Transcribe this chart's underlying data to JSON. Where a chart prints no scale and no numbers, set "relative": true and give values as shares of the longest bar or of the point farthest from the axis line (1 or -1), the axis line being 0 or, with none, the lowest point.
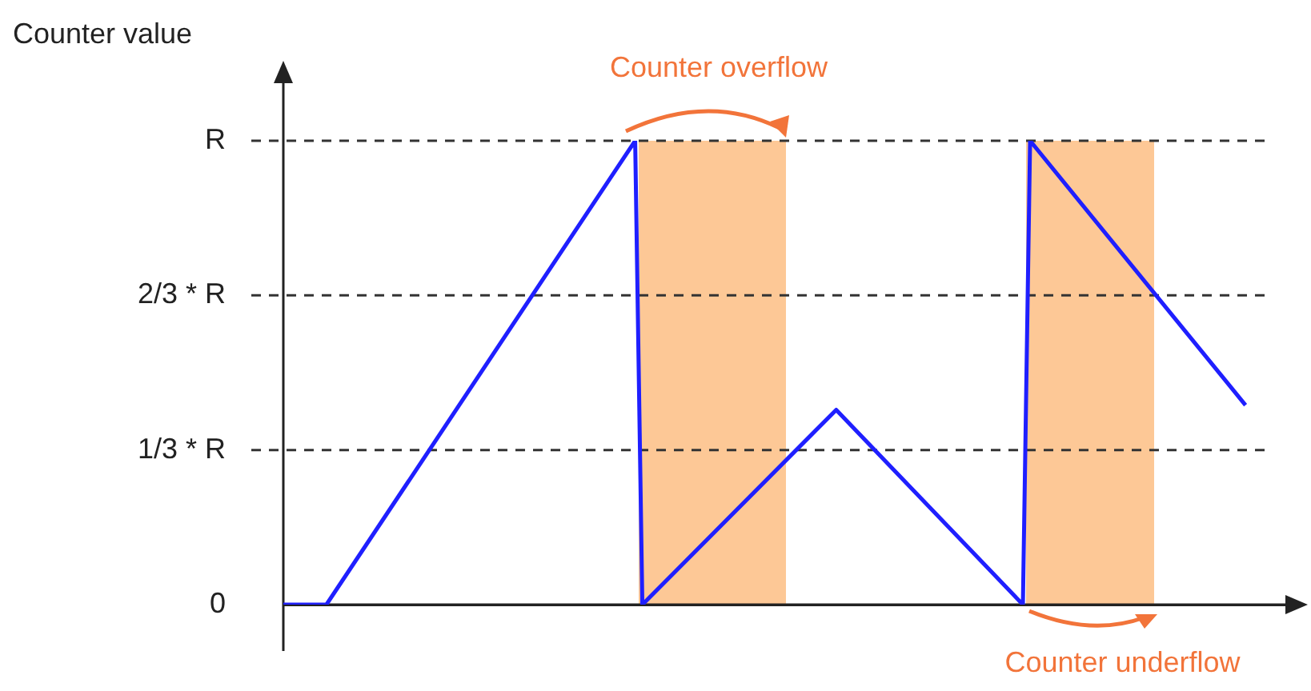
{
  "chart_data": {
    "type": "line",
    "ylabel": "Counter value",
    "relative": true,
    "categories": [
      null,
      null,
      null,
      null,
      null,
      null,
      null,
      null,
      null,
      null,
      null,
      null,
      null,
      null,
      null,
      null,
      null,
      null,
      null,
      null,
      null,
      null,
      null,
      null,
      null,
      null,
      null,
      null,
      null,
      null,
      null,
      null,
      null,
      null,
      null,
      null,
      null,
      null,
      null,
      null,
      null,
      null,
      null,
      null,
      null,
      null,
      null,
      null,
      null,
      null,
      null,
      null,
      null,
      null,
      null,
      null,
      null,
      null,
      null,
      null,
      null,
      null,
      null,
      null,
      null,
      null,
      null,
      null,
      null,
      null,
      null,
      null,
      null,
      null,
      null,
      null,
      null,
      null,
      null,
      null,
      null,
      null,
      null,
      null,
      null,
      null,
      null,
      null,
      null,
      null,
      null,
      null,
      null,
      null,
      null,
      null,
      null,
      null,
      null,
      null,
      null,
      null,
      null,
      null,
      null,
      null,
      null,
      null,
      null,
      null,
      null,
      null,
      null,
      null,
      null,
      null,
      null,
      null,
      null,
      null,
      null,
      null,
      null,
      null,
      null,
      null,
      null,
      null,
      null,
      null,
      null,
      null,
      null,
      null,
      null,
      null,
      null,
      null,
      null,
      null,
      null
    ],
    "series": [
      {
        "color": "#1f1fff",
        "values": [
          0,
          null,
          null,
          null,
          null,
          null,
          0,
          null,
          null,
          null,
          null,
          null,
          null,
          null,
          null,
          null,
          null,
          null,
          null,
          null,
          null,
          null,
          null,
          null,
          null,
          null,
          null,
          null,
          null,
          null,
          null,
          null,
          null,
          null,
          null,
          null,
          null,
          null,
          null,
          null,
          null,
          null,
          null,
          null,
          null,
          null,
          null,
          null,
          null,
          1,
          0,
          null,
          null,
          null,
          null,
          null,
          null,
          null,
          null,
          null,
          null,
          null,
          null,
          null,
          null,
          null,
          null,
          null,
          null,
          null,
          null,
          null,
          null,
          null,
          null,
          null,
          null,
          0.42,
          null,
          null,
          null,
          null,
          null,
          null,
          null,
          null,
          null,
          null,
          null,
          null,
          null,
          null,
          null,
          null,
          null,
          null,
          null,
          null,
          null,
          null,
          null,
          null,
          null,
          0,
          1,
          null,
          null,
          null,
          null,
          null,
          null,
          null,
          null,
          null,
          null,
          null,
          null,
          null,
          null,
          null,
          null,
          null,
          null,
          null,
          null,
          null,
          null,
          null,
          null,
          null,
          null,
          null,
          null,
          null,
          0.43,
          null,
          null,
          null,
          null,
          null,
          null
        ]
      }
    ],
    "ref_lines": [
      {
        "axis": "y",
        "value": 0,
        "label": "0",
        "line_style": "solid",
        "color": "#222222"
      },
      {
        "axis": "y",
        "value": 0.3333,
        "label": "1/3 * R",
        "line_style": "dashed",
        "color": "#333333"
      },
      {
        "axis": "y",
        "value": 0.6667,
        "label": "2/3 * R",
        "line_style": "dashed",
        "color": "#333333"
      },
      {
        "axis": "y",
        "value": 1,
        "label": "R",
        "line_style": "dashed",
        "color": "#333333"
      }
    ],
    "annotations": [
      "Counter overflow",
      "Counter underflow"
    ],
    "grid": false,
    "legend": false,
    "marker": "none",
    "line_style": "solid"
  }
}
